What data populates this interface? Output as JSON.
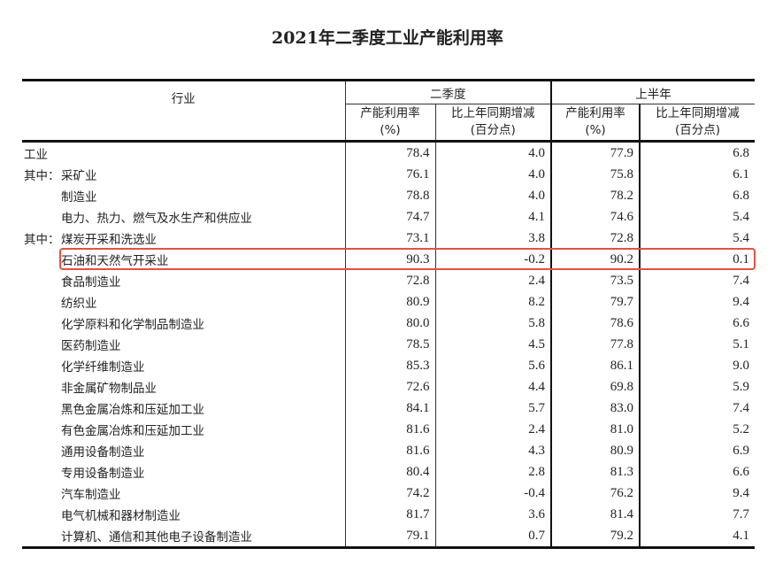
{
  "title": "2021年二季度工业产能利用率",
  "header": {
    "industry": "行业",
    "q2": "二季度",
    "h1": "上半年",
    "rate": "产能利用率",
    "rate_unit": "(%)",
    "change": "比上年同期增减",
    "change_unit": "(百分点)"
  },
  "highlight_color": "#e0533f",
  "rows": [
    {
      "prefix": "",
      "name": "工业",
      "q2_rate": "78.4",
      "q2_change": "4.0",
      "h1_rate": "77.9",
      "h1_change": "6.8"
    },
    {
      "prefix": "其中：",
      "name": "采矿业",
      "q2_rate": "76.1",
      "q2_change": "4.0",
      "h1_rate": "75.8",
      "h1_change": "6.1"
    },
    {
      "prefix": "",
      "name": "制造业",
      "q2_rate": "78.8",
      "q2_change": "4.0",
      "h1_rate": "78.2",
      "h1_change": "6.8"
    },
    {
      "prefix": "",
      "name": "电力、热力、燃气及水生产和供应业",
      "q2_rate": "74.7",
      "q2_change": "4.1",
      "h1_rate": "74.6",
      "h1_change": "5.4"
    },
    {
      "prefix": "其中：",
      "name": "煤炭开采和洗选业",
      "q2_rate": "73.1",
      "q2_change": "3.8",
      "h1_rate": "72.8",
      "h1_change": "5.4"
    },
    {
      "prefix": "",
      "name": "石油和天然气开采业",
      "q2_rate": "90.3",
      "q2_change": "-0.2",
      "h1_rate": "90.2",
      "h1_change": "0.1"
    },
    {
      "prefix": "",
      "name": "食品制造业",
      "q2_rate": "72.8",
      "q2_change": "2.4",
      "h1_rate": "73.5",
      "h1_change": "7.4"
    },
    {
      "prefix": "",
      "name": "纺织业",
      "q2_rate": "80.9",
      "q2_change": "8.2",
      "h1_rate": "79.7",
      "h1_change": "9.4"
    },
    {
      "prefix": "",
      "name": "化学原料和化学制品制造业",
      "q2_rate": "80.0",
      "q2_change": "5.8",
      "h1_rate": "78.6",
      "h1_change": "6.6"
    },
    {
      "prefix": "",
      "name": "医药制造业",
      "q2_rate": "78.5",
      "q2_change": "4.5",
      "h1_rate": "77.8",
      "h1_change": "5.1"
    },
    {
      "prefix": "",
      "name": "化学纤维制造业",
      "q2_rate": "85.3",
      "q2_change": "5.6",
      "h1_rate": "86.1",
      "h1_change": "9.0"
    },
    {
      "prefix": "",
      "name": "非金属矿物制品业",
      "q2_rate": "72.6",
      "q2_change": "4.4",
      "h1_rate": "69.8",
      "h1_change": "5.9"
    },
    {
      "prefix": "",
      "name": "黑色金属冶炼和压延加工业",
      "q2_rate": "84.1",
      "q2_change": "5.7",
      "h1_rate": "83.0",
      "h1_change": "7.4"
    },
    {
      "prefix": "",
      "name": "有色金属冶炼和压延加工业",
      "q2_rate": "81.6",
      "q2_change": "2.4",
      "h1_rate": "81.0",
      "h1_change": "5.2"
    },
    {
      "prefix": "",
      "name": "通用设备制造业",
      "q2_rate": "81.6",
      "q2_change": "4.3",
      "h1_rate": "80.9",
      "h1_change": "6.9"
    },
    {
      "prefix": "",
      "name": "专用设备制造业",
      "q2_rate": "80.4",
      "q2_change": "2.8",
      "h1_rate": "81.3",
      "h1_change": "6.6"
    },
    {
      "prefix": "",
      "name": "汽车制造业",
      "q2_rate": "74.2",
      "q2_change": "-0.4",
      "h1_rate": "76.2",
      "h1_change": "9.4"
    },
    {
      "prefix": "",
      "name": "电气机械和器材制造业",
      "q2_rate": "81.7",
      "q2_change": "3.6",
      "h1_rate": "81.4",
      "h1_change": "7.7"
    },
    {
      "prefix": "",
      "name": "计算机、通信和其他电子设备制造业",
      "q2_rate": "79.1",
      "q2_change": "0.7",
      "h1_rate": "79.2",
      "h1_change": "4.1"
    }
  ]
}
